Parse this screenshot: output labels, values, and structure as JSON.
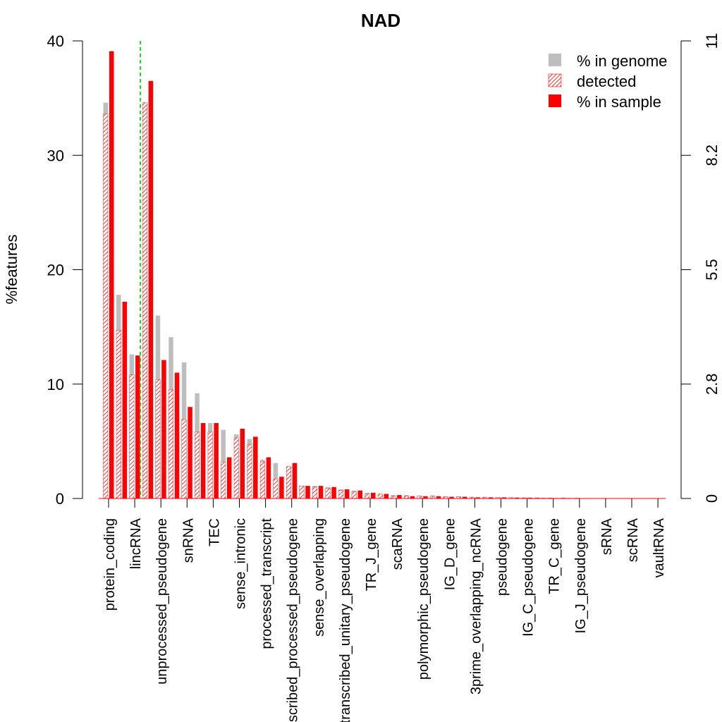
{
  "chart_data": {
    "type": "bar",
    "title": "NAD",
    "ylabel": "%features",
    "ylim": [
      0,
      40
    ],
    "y_ticks": [
      0,
      10,
      20,
      30,
      40
    ],
    "y2_ticks": [
      "0",
      "2.8",
      "5.5",
      "8.2",
      "11"
    ],
    "colors": {
      "genome": "#bebebe",
      "detected": "#ff0000",
      "sample": "#ff0000",
      "marker": "#22cc22"
    },
    "legend": {
      "position": "top-right",
      "entries": [
        "% in genome",
        "detected",
        "% in sample"
      ]
    },
    "categories": [
      "protein_coding",
      "",
      "lincRNA",
      "",
      "unprocessed_pseudogene",
      "",
      "snRNA",
      "",
      "TEC",
      "",
      "sense_intronic",
      "",
      "processed_transcript",
      "",
      "transcribed_processed_pseudogene",
      "",
      "sense_overlapping",
      "",
      "transcribed_unitary_pseudogene",
      "",
      "TR_J_gene",
      "",
      "scaRNA",
      "",
      "polymorphic_pseudogene",
      "",
      "IG_D_gene",
      "",
      "3prime_overlapping_ncRNA",
      "",
      "pseudogene",
      "",
      "IG_C_pseudogene",
      "",
      "TR_C_gene",
      "",
      "IG_J_pseudogene",
      "",
      "sRNA",
      "",
      "scRNA",
      "",
      "vaultRNA"
    ],
    "series": [
      {
        "name": "% in genome",
        "values": [
          34.6,
          17.8,
          12.6,
          0,
          16.0,
          14.1,
          11.9,
          9.2,
          6.6,
          6.0,
          5.6,
          5.2,
          3.4,
          3.1,
          2.7,
          1.1,
          1.1,
          1.0,
          0.8,
          0.7,
          0.5,
          0.4,
          0.3,
          0.3,
          0.25,
          0.25,
          0.2,
          0.2,
          0.15,
          0.15,
          0.1,
          0.1,
          0.1,
          0.08,
          0.06,
          0.05,
          0.04,
          0.03,
          0.03,
          0.02,
          0.02,
          0.02,
          0.01
        ]
      },
      {
        "name": "detected",
        "values": [
          33.6,
          14.7,
          10.8,
          34.6,
          10.4,
          9.5,
          6.9,
          5.8,
          5.8,
          3.2,
          5.3,
          4.7,
          3.2,
          1.7,
          2.8,
          1.1,
          1.0,
          0.9,
          0.7,
          0.6,
          0.4,
          0.4,
          0.2,
          0.2,
          0.2,
          0.2,
          0.15,
          0.15,
          0.1,
          0.1,
          0.08,
          0.07,
          0.06,
          0.05,
          0.04,
          0.04,
          0.03,
          0.02,
          0.02,
          0.01,
          0.01,
          0.01,
          0.01
        ]
      },
      {
        "name": "% in sample",
        "values": [
          39.1,
          17.2,
          12.5,
          36.5,
          12.1,
          11.0,
          8.0,
          6.6,
          6.6,
          3.6,
          6.1,
          5.4,
          3.6,
          1.9,
          3.1,
          1.1,
          1.1,
          1.0,
          0.8,
          0.7,
          0.5,
          0.4,
          0.3,
          0.2,
          0.2,
          0.2,
          0.15,
          0.15,
          0.1,
          0.1,
          0.1,
          0.08,
          0.07,
          0.05,
          0.04,
          0.04,
          0.03,
          0.02,
          0.02,
          0.02,
          0.01,
          0.01,
          0.01
        ]
      }
    ],
    "marker_after_category": 3
  }
}
